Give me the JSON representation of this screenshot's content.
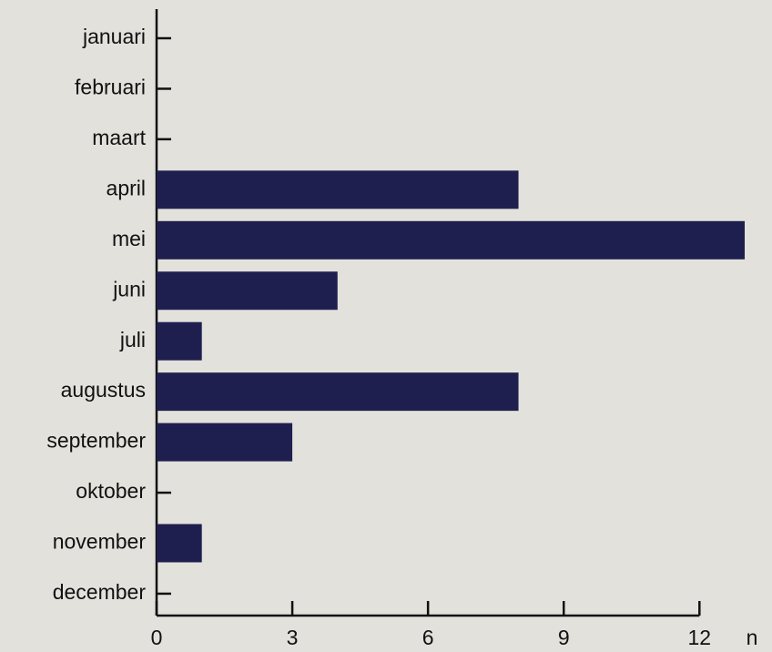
{
  "chart_data": {
    "type": "bar",
    "orientation": "horizontal",
    "categories": [
      "januari",
      "februari",
      "maart",
      "april",
      "mei",
      "juni",
      "juli",
      "augustus",
      "september",
      "oktober",
      "november",
      "december"
    ],
    "values": [
      0,
      0,
      0,
      8,
      13,
      4,
      1,
      8,
      3,
      0,
      1,
      0
    ],
    "color": "#1f1f4f",
    "x_label": "n",
    "xlim": [
      0,
      13
    ],
    "xticks": [
      0,
      3,
      6,
      9,
      12
    ],
    "grid": false
  }
}
